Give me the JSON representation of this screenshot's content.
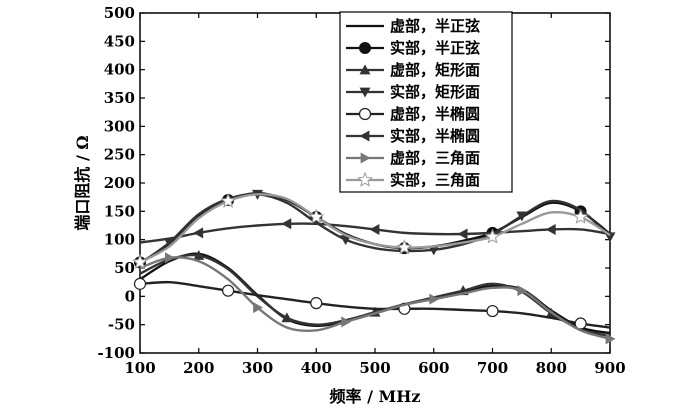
{
  "chart_data": {
    "type": "line",
    "xlabel": "频率 / MHz",
    "ylabel": "端口阻抗 / Ω",
    "xlim": [
      100,
      900
    ],
    "ylim": [
      -100,
      500
    ],
    "xticks": [
      "100",
      "200",
      "300",
      "400",
      "500",
      "600",
      "700",
      "800",
      "900"
    ],
    "yticks": [
      "-100",
      "-50",
      "0",
      "50",
      "100",
      "150",
      "200",
      "250",
      "300",
      "350",
      "400",
      "450",
      "500"
    ],
    "grid": false,
    "legend_position": "top-right",
    "series": [
      {
        "name": "虚部，半正弦",
        "marker": "none",
        "color": "#111111",
        "x": [
          100,
          150,
          200,
          250,
          300,
          350,
          400,
          450,
          500,
          550,
          600,
          650,
          700,
          750,
          800,
          850,
          900
        ],
        "y": [
          30,
          62,
          75,
          50,
          2,
          -40,
          -52,
          -44,
          -30,
          -15,
          -3,
          8,
          18,
          12,
          -25,
          -55,
          -65
        ]
      },
      {
        "name": "实部，半正弦",
        "marker": "filled-circle",
        "color": "#111111",
        "x": [
          100,
          150,
          200,
          250,
          300,
          350,
          400,
          450,
          500,
          550,
          600,
          650,
          700,
          750,
          800,
          850,
          900
        ],
        "y": [
          60,
          90,
          140,
          170,
          182,
          170,
          140,
          110,
          92,
          85,
          88,
          98,
          112,
          140,
          165,
          150,
          110
        ]
      },
      {
        "name": "虚部，矩形面",
        "marker": "filled-triangle-up",
        "color": "#333333",
        "x": [
          100,
          150,
          200,
          250,
          300,
          350,
          400,
          450,
          500,
          550,
          600,
          650,
          700,
          750,
          800,
          850,
          900
        ],
        "y": [
          40,
          65,
          72,
          48,
          0,
          -38,
          -50,
          -42,
          -28,
          -14,
          -2,
          10,
          22,
          8,
          -30,
          -58,
          -70
        ]
      },
      {
        "name": "实部，矩形面",
        "marker": "filled-triangle-down",
        "color": "#333333",
        "x": [
          100,
          150,
          200,
          250,
          300,
          350,
          400,
          450,
          500,
          550,
          600,
          650,
          700,
          750,
          800,
          850,
          900
        ],
        "y": [
          58,
          95,
          145,
          172,
          180,
          165,
          130,
          100,
          85,
          80,
          82,
          92,
          110,
          142,
          168,
          152,
          105
        ]
      },
      {
        "name": "虚部，半椭圆",
        "marker": "open-circle",
        "color": "#222222",
        "x": [
          100,
          150,
          200,
          250,
          300,
          350,
          400,
          450,
          500,
          550,
          600,
          650,
          700,
          750,
          800,
          850,
          900
        ],
        "y": [
          22,
          25,
          18,
          10,
          2,
          -5,
          -12,
          -18,
          -22,
          -22,
          -22,
          -24,
          -26,
          -30,
          -38,
          -48,
          -55
        ]
      },
      {
        "name": "实部，半椭圆",
        "marker": "filled-triangle-left",
        "color": "#333333",
        "x": [
          100,
          150,
          200,
          250,
          300,
          350,
          400,
          450,
          500,
          550,
          600,
          650,
          700,
          750,
          800,
          850,
          900
        ],
        "y": [
          95,
          102,
          112,
          120,
          125,
          128,
          128,
          124,
          118,
          112,
          110,
          110,
          112,
          115,
          118,
          118,
          110
        ]
      },
      {
        "name": "虚部，三角面",
        "marker": "filled-triangle-right",
        "color": "#777777",
        "x": [
          100,
          150,
          200,
          250,
          300,
          350,
          400,
          450,
          500,
          550,
          600,
          650,
          700,
          750,
          800,
          850,
          900
        ],
        "y": [
          50,
          68,
          62,
          30,
          -20,
          -55,
          -60,
          -45,
          -30,
          -15,
          -5,
          5,
          15,
          10,
          -28,
          -60,
          -75
        ]
      },
      {
        "name": "实部，三角面",
        "marker": "open-star",
        "color": "#999999",
        "x": [
          100,
          150,
          200,
          250,
          300,
          350,
          400,
          450,
          500,
          550,
          600,
          650,
          700,
          750,
          800,
          850,
          900
        ],
        "y": [
          60,
          88,
          138,
          168,
          180,
          172,
          140,
          108,
          92,
          86,
          88,
          95,
          105,
          128,
          148,
          140,
          108
        ]
      }
    ]
  }
}
